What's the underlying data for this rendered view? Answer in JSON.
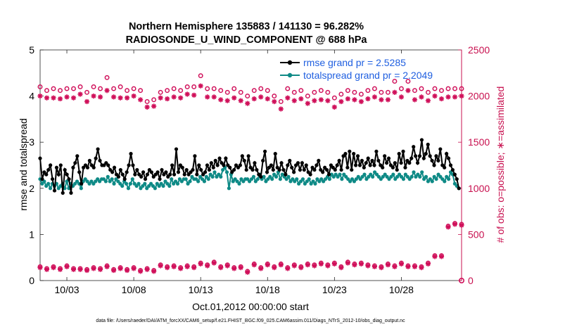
{
  "chart_data": {
    "type": "line",
    "title": "Northern Hemisphere 135883 / 141130 = 96.282%",
    "subtitle": "RADIOSONDE_U_WIND_COMPONENT @ 688 hPa",
    "xlabel": "Oct.01,2012 00:00:00 start",
    "ylabel_left": "rmse and totalspread",
    "ylabel_right": "# of obs: o=possible; ∗=assimilated",
    "footer": "data file: /Users/raeder/DAI/ATM_forcXX/CAM6_setup/f.e21.FHIST_BGC.f09_025.CAM6assim.011/Diags_NTrS_2012-10/obs_diag_output.nc",
    "xlim": [
      1,
      32.5
    ],
    "ylim_left": [
      0,
      5
    ],
    "ylim_right": [
      0,
      2500
    ],
    "x_ticks": [
      3,
      8,
      13,
      18,
      23,
      28
    ],
    "x_tick_labels": [
      "10/03",
      "10/08",
      "10/13",
      "10/18",
      "10/23",
      "10/28"
    ],
    "y_left_ticks": [
      0,
      1,
      2,
      3,
      4,
      5
    ],
    "y_left_tick_labels": [
      "0",
      "1",
      "2",
      "3",
      "4",
      "5"
    ],
    "y_right_ticks": [
      0,
      500,
      1000,
      1500,
      2000,
      2500
    ],
    "y_right_tick_labels": [
      "0",
      "500",
      "1000",
      "1500",
      "2000",
      "2500"
    ],
    "legend": {
      "placement": "top-right",
      "entries": [
        "rmse grand pr = 2.5285",
        "totalspread grand pr = 2.2049"
      ]
    },
    "colors": {
      "rmse": "#000000",
      "totalspread": "#0e8a86",
      "obs": "#d0105a",
      "right_axis": "#c8104f"
    },
    "series": [
      {
        "name": "rmse grand pr = 2.5285",
        "axis": "left",
        "marker": "filled-circle",
        "y": [
          2.65,
          2.2,
          2.35,
          2.3,
          2.4,
          2.5,
          2.2,
          1.95,
          2.45,
          2.3,
          2.5,
          1.9,
          2.4,
          2.3,
          2.2,
          1.9,
          2.45,
          2.55,
          2.7,
          2.35,
          2.1,
          2.45,
          2.5,
          2.45,
          2.6,
          2.5,
          2.45,
          2.65,
          2.85,
          2.6,
          2.5,
          2.5,
          2.55,
          2.5,
          2.4,
          2.35,
          2.45,
          2.3,
          2.25,
          2.4,
          2.3,
          2.2,
          2.35,
          2.5,
          2.75,
          2.5,
          2.3,
          2.4,
          2.3,
          2.25,
          2.35,
          2.2,
          2.3,
          2.4,
          2.35,
          2.25,
          2.3,
          2.35,
          2.2,
          2.4,
          2.3,
          2.35,
          2.25,
          2.3,
          2.5,
          2.3,
          2.85,
          2.35,
          2.5,
          2.45,
          2.3,
          2.4,
          2.3,
          2.35,
          2.4,
          2.7,
          2.3,
          2.5,
          2.4,
          2.3,
          2.35,
          2.5,
          2.4,
          2.55,
          2.45,
          2.6,
          2.5,
          2.65,
          2.55,
          2.5,
          2.65,
          2.5,
          2.45,
          2.35,
          2.4,
          2.5,
          2.45,
          2.5,
          2.7,
          2.6,
          2.4,
          2.7,
          2.45,
          2.4,
          2.55,
          2.4,
          2.3,
          2.25,
          2.6,
          2.8,
          2.35,
          2.45,
          2.5,
          2.4,
          2.75,
          2.45,
          2.4,
          2.55,
          2.4,
          2.3,
          2.5,
          2.6,
          2.45,
          2.35,
          2.5,
          2.55,
          2.4,
          2.55,
          2.4,
          2.5,
          2.35,
          2.3,
          2.45,
          2.4,
          2.5,
          2.6,
          2.4,
          2.35,
          2.45,
          2.4,
          2.3,
          2.5,
          2.45,
          2.4,
          2.5,
          2.6,
          2.4,
          2.7,
          2.75,
          2.45,
          2.8,
          2.4,
          2.75,
          2.5,
          2.7,
          2.5,
          2.6,
          2.45,
          2.55,
          2.65,
          2.5,
          2.6,
          2.5,
          2.8,
          2.6,
          2.5,
          2.45,
          2.7,
          2.55,
          2.65,
          2.5,
          2.45,
          2.55,
          2.4,
          2.75,
          2.55,
          2.8,
          2.45,
          2.6,
          2.55,
          2.65,
          2.9,
          2.7,
          2.55,
          2.7,
          3.05,
          2.65,
          2.75,
          2.95,
          2.7,
          2.6,
          2.5,
          2.7,
          2.6,
          2.85,
          2.5,
          2.45,
          2.75,
          2.65,
          2.5,
          2.4,
          2.3,
          2.2,
          2.0
        ]
      },
      {
        "name": "totalspread grand pr = 2.2049",
        "axis": "left",
        "marker": "filled-circle",
        "y": [
          2.2,
          2.1,
          2.15,
          2.05,
          2.1,
          2.0,
          2.1,
          2.05,
          2.1,
          2.0,
          2.05,
          2.1,
          2.0,
          2.15,
          2.0,
          2.1,
          2.05,
          2.1,
          2.15,
          2.1,
          2.0,
          2.15,
          2.2,
          2.15,
          2.1,
          2.15,
          2.1,
          2.15,
          2.2,
          2.15,
          2.2,
          2.2,
          2.15,
          2.25,
          2.15,
          2.2,
          2.1,
          2.2,
          2.15,
          2.1,
          2.05,
          2.15,
          2.1,
          2.0,
          2.1,
          2.2,
          2.1,
          2.05,
          2.1,
          2.0,
          2.05,
          2.1,
          2.0,
          2.05,
          2.1,
          2.05,
          2.0,
          2.1,
          2.05,
          2.1,
          2.05,
          2.15,
          2.1,
          2.05,
          2.2,
          2.1,
          2.15,
          2.1,
          2.2,
          2.15,
          2.2,
          2.2,
          2.1,
          2.15,
          2.25,
          2.2,
          2.2,
          2.15,
          2.25,
          2.2,
          2.15,
          2.25,
          2.2,
          2.3,
          2.25,
          2.35,
          2.25,
          2.3,
          2.25,
          2.4,
          2.45,
          2.35,
          2.0,
          2.3,
          2.15,
          2.2,
          2.15,
          2.1,
          2.2,
          2.15,
          2.2,
          2.2,
          2.15,
          2.2,
          2.25,
          2.15,
          2.2,
          2.3,
          2.2,
          2.25,
          2.15,
          2.2,
          2.25,
          2.2,
          2.3,
          2.25,
          2.35,
          2.2,
          2.3,
          2.25,
          2.2,
          2.25,
          2.15,
          2.2,
          2.15,
          2.2,
          2.1,
          2.15,
          2.2,
          2.1,
          2.15,
          2.2,
          2.1,
          2.15,
          2.1,
          2.2,
          2.15,
          2.2,
          2.15,
          2.2,
          2.25,
          2.2,
          2.3,
          2.25,
          2.3,
          2.25,
          2.3,
          2.2,
          2.3,
          2.25,
          2.2,
          2.15,
          2.2,
          2.15,
          2.2,
          2.25,
          2.2,
          2.25,
          2.3,
          2.2,
          2.25,
          2.3,
          2.25,
          2.35,
          2.3,
          2.25,
          2.2,
          2.25,
          2.3,
          2.25,
          2.2,
          2.25,
          2.3,
          2.2,
          2.25,
          2.3,
          2.25,
          2.2,
          2.3,
          2.25,
          2.2,
          2.25,
          2.35,
          2.25,
          2.3,
          2.25,
          2.35,
          2.2,
          2.25,
          2.15,
          2.2,
          2.15,
          2.25,
          2.2,
          2.3,
          2.25,
          2.2,
          2.15,
          2.25,
          2.2,
          2.35,
          2.3,
          2.1,
          2.05,
          2.0
        ]
      },
      {
        "name": "obs possible",
        "axis": "right",
        "marker": "open-circle",
        "x": [
          1.0,
          1.5,
          2.0,
          2.5,
          3.0,
          3.5,
          4.0,
          4.5,
          5.0,
          5.5,
          6.0,
          6.5,
          7.0,
          7.5,
          8.0,
          8.5,
          9.0,
          9.5,
          10.0,
          10.5,
          11.0,
          11.5,
          12.0,
          12.5,
          13.0,
          13.5,
          14.0,
          14.5,
          15.0,
          15.5,
          16.0,
          16.5,
          17.0,
          17.5,
          18.0,
          18.5,
          19.0,
          19.5,
          20.0,
          20.5,
          21.0,
          21.5,
          22.0,
          22.5,
          23.0,
          23.5,
          24.0,
          24.5,
          25.0,
          25.5,
          26.0,
          26.5,
          27.0,
          27.5,
          28.0,
          28.5,
          29.0,
          29.5,
          30.0,
          30.5,
          31.0,
          31.5,
          32.0,
          32.5
        ],
        "y": [
          2100,
          2060,
          2080,
          2060,
          2080,
          2080,
          2100,
          2040,
          2100,
          2080,
          2200,
          2080,
          2100,
          2060,
          2080,
          2060,
          1940,
          1960,
          2040,
          2060,
          2080,
          2060,
          2100,
          2100,
          2220,
          2080,
          2080,
          2060,
          2040,
          2080,
          2040,
          2000,
          2060,
          2080,
          2060,
          2000,
          1940,
          2080,
          2040,
          2060,
          2000,
          2040,
          2060,
          2040,
          1980,
          2020,
          2060,
          2040,
          2020,
          2060,
          2080,
          2040,
          2040,
          2160,
          2080,
          2160,
          2060,
          2080,
          2040,
          2080,
          2060,
          2080,
          2080,
          2080
        ]
      },
      {
        "name": "obs assimilated",
        "axis": "right",
        "marker": "asterisk",
        "x": [
          1.0,
          1.5,
          2.0,
          2.5,
          3.0,
          3.5,
          4.0,
          4.5,
          5.0,
          5.5,
          6.0,
          6.5,
          7.0,
          7.5,
          8.0,
          8.5,
          9.0,
          9.5,
          10.0,
          10.5,
          11.0,
          11.5,
          12.0,
          12.5,
          13.0,
          13.5,
          14.0,
          14.5,
          15.0,
          15.5,
          16.0,
          16.5,
          17.0,
          17.5,
          18.0,
          18.5,
          19.0,
          19.5,
          20.0,
          20.5,
          21.0,
          21.5,
          22.0,
          22.5,
          23.0,
          23.5,
          24.0,
          24.5,
          25.0,
          25.5,
          26.0,
          26.5,
          27.0,
          27.5,
          28.0,
          28.5,
          29.0,
          29.5,
          30.0,
          30.5,
          31.0,
          31.5,
          32.0,
          32.5
        ],
        "y": [
          2000,
          1980,
          1980,
          1970,
          1990,
          1980,
          2020,
          1940,
          2000,
          1990,
          2060,
          1990,
          1980,
          1980,
          2000,
          1960,
          1880,
          1890,
          1980,
          1970,
          1990,
          1980,
          2020,
          2010,
          2110,
          1990,
          1990,
          1960,
          1950,
          1980,
          1950,
          1920,
          1970,
          1990,
          1970,
          1940,
          1860,
          1980,
          1950,
          1970,
          1920,
          1950,
          1960,
          1950,
          1880,
          1940,
          1970,
          1960,
          1940,
          1970,
          1990,
          1960,
          1960,
          2040,
          1990,
          2060,
          1960,
          1990,
          1950,
          2000,
          1970,
          1990,
          1990,
          2000
        ]
      },
      {
        "name": "obs possible low",
        "axis": "right",
        "marker": "open-circle",
        "x": [
          1.0,
          1.5,
          2.0,
          2.5,
          3.0,
          3.5,
          4.0,
          4.5,
          5.0,
          5.5,
          6.0,
          6.5,
          7.0,
          7.5,
          8.0,
          8.5,
          9.0,
          9.5,
          10.0,
          10.5,
          11.0,
          11.5,
          12.0,
          12.5,
          13.0,
          13.5,
          14.0,
          14.5,
          15.0,
          15.5,
          16.0,
          16.5,
          17.0,
          17.5,
          18.0,
          18.5,
          19.0,
          19.5,
          20.0,
          20.5,
          21.0,
          21.5,
          22.0,
          22.5,
          23.0,
          23.5,
          24.0,
          24.5,
          25.0,
          25.5,
          26.0,
          26.5,
          27.0,
          27.5,
          28.0,
          28.5,
          29.0,
          29.5,
          30.0,
          30.5,
          31.0,
          31.5,
          32.0,
          32.5
        ],
        "y": [
          150,
          130,
          150,
          130,
          160,
          130,
          130,
          120,
          140,
          130,
          160,
          120,
          140,
          120,
          140,
          110,
          130,
          110,
          170,
          150,
          160,
          140,
          160,
          150,
          190,
          170,
          200,
          150,
          170,
          140,
          150,
          100,
          180,
          140,
          180,
          150,
          180,
          140,
          170,
          150,
          180,
          170,
          190,
          170,
          190,
          150,
          200,
          180,
          190,
          170,
          160,
          150,
          180,
          160,
          190,
          160,
          160,
          150,
          190,
          270,
          270,
          590,
          620,
          610
        ]
      },
      {
        "name": "obs assimilated low",
        "axis": "right",
        "marker": "asterisk",
        "x": [
          1.0,
          1.5,
          2.0,
          2.5,
          3.0,
          3.5,
          4.0,
          4.5,
          5.0,
          5.5,
          6.0,
          6.5,
          7.0,
          7.5,
          8.0,
          8.5,
          9.0,
          9.5,
          10.0,
          10.5,
          11.0,
          11.5,
          12.0,
          12.5,
          13.0,
          13.5,
          14.0,
          14.5,
          15.0,
          15.5,
          16.0,
          16.5,
          17.0,
          17.5,
          18.0,
          18.5,
          19.0,
          19.5,
          20.0,
          20.5,
          21.0,
          21.5,
          22.0,
          22.5,
          23.0,
          23.5,
          24.0,
          24.5,
          25.0,
          25.5,
          26.0,
          26.5,
          27.0,
          27.5,
          28.0,
          28.5,
          29.0,
          29.5,
          30.0,
          30.5,
          31.0,
          31.5,
          32.0,
          32.5
        ],
        "y": [
          140,
          120,
          140,
          120,
          150,
          120,
          120,
          110,
          130,
          120,
          150,
          110,
          130,
          110,
          130,
          100,
          120,
          100,
          160,
          140,
          150,
          130,
          150,
          140,
          180,
          160,
          190,
          140,
          160,
          130,
          140,
          90,
          170,
          130,
          170,
          140,
          170,
          130,
          160,
          140,
          170,
          160,
          180,
          160,
          180,
          140,
          190,
          170,
          180,
          160,
          150,
          140,
          170,
          150,
          180,
          150,
          150,
          140,
          180,
          260,
          260,
          580,
          610,
          600
        ]
      }
    ]
  }
}
